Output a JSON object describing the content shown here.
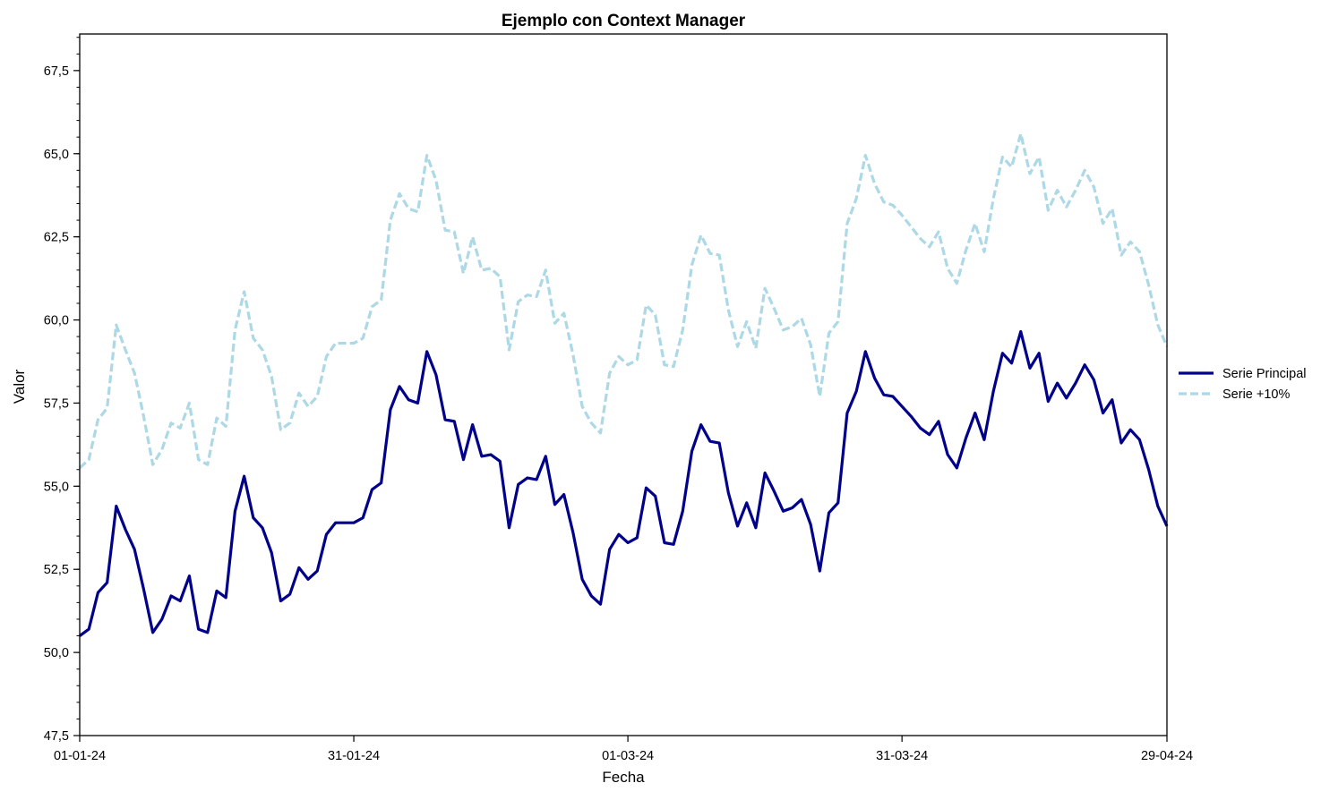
{
  "chart_data": {
    "type": "line",
    "title": "Ejemplo con Context Manager",
    "xlabel": "Fecha",
    "ylabel": "Valor",
    "x_start": "2024-01-01",
    "x_end": "2024-04-29",
    "ylim": [
      47.5,
      68.6
    ],
    "xticks": [
      {
        "date": "2024-01-01",
        "label": "01-01-24"
      },
      {
        "date": "2024-01-31",
        "label": "31-01-24"
      },
      {
        "date": "2024-03-01",
        "label": "01-03-24"
      },
      {
        "date": "2024-03-31",
        "label": "31-03-24"
      },
      {
        "date": "2024-04-29",
        "label": "29-04-24"
      }
    ],
    "yticks": [
      {
        "value": 47.5,
        "label": "47,5"
      },
      {
        "value": 50.0,
        "label": "50,0"
      },
      {
        "value": 52.5,
        "label": "52,5"
      },
      {
        "value": 55.0,
        "label": "55,0"
      },
      {
        "value": 57.5,
        "label": "57,5"
      },
      {
        "value": 60.0,
        "label": "60,0"
      },
      {
        "value": 62.5,
        "label": "62,5"
      },
      {
        "value": 65.0,
        "label": "65,0"
      },
      {
        "value": 67.5,
        "label": "67,5"
      }
    ],
    "y_minor_step": 0.5,
    "grid": false,
    "legend": "right",
    "series": [
      {
        "name": "Serie Principal",
        "color": "#00008b",
        "dash": "solid",
        "values": [
          50.5,
          50.7,
          51.8,
          52.1,
          54.4,
          53.7,
          53.1,
          51.9,
          50.6,
          51.0,
          51.7,
          51.55,
          52.3,
          50.7,
          50.6,
          51.85,
          51.65,
          54.25,
          55.3,
          54.05,
          53.75,
          53.0,
          51.55,
          51.75,
          52.55,
          52.2,
          52.45,
          53.55,
          53.9,
          53.9,
          53.9,
          54.05,
          54.9,
          55.1,
          57.3,
          58.0,
          57.6,
          57.5,
          59.05,
          58.35,
          57.0,
          56.95,
          55.8,
          56.85,
          55.9,
          55.95,
          55.75,
          53.75,
          55.05,
          55.25,
          55.2,
          55.9,
          54.45,
          54.75,
          53.6,
          52.2,
          51.7,
          51.45,
          53.1,
          53.55,
          53.3,
          53.45,
          54.95,
          54.7,
          53.3,
          53.25,
          54.25,
          56.05,
          56.85,
          56.35,
          56.3,
          54.8,
          53.8,
          54.5,
          53.75,
          55.4,
          54.85,
          54.25,
          54.35,
          54.6,
          53.85,
          52.45,
          54.2,
          54.5,
          57.2,
          57.85,
          59.05,
          58.25,
          57.75,
          57.7,
          57.4,
          57.1,
          56.75,
          56.55,
          56.95,
          55.95,
          55.55,
          56.45,
          57.2,
          56.4,
          57.85,
          59.0,
          58.7,
          59.65,
          58.55,
          59.0,
          57.55,
          58.1,
          57.65,
          58.1,
          58.65,
          58.2,
          57.2,
          57.6,
          56.3,
          56.7,
          56.4,
          55.5,
          54.4,
          53.8
        ]
      },
      {
        "name": "Serie +10%",
        "color": "#add8e6",
        "dash": "dashed",
        "values": [
          55.55,
          55.8,
          57.0,
          57.35,
          59.85,
          59.1,
          58.4,
          57.1,
          55.65,
          56.1,
          56.9,
          56.75,
          57.5,
          55.8,
          55.65,
          57.05,
          56.8,
          59.7,
          60.85,
          59.45,
          59.1,
          58.3,
          56.7,
          56.9,
          57.8,
          57.4,
          57.7,
          58.9,
          59.3,
          59.3,
          59.3,
          59.45,
          60.4,
          60.6,
          63.0,
          63.8,
          63.35,
          63.25,
          64.95,
          64.2,
          62.7,
          62.65,
          61.4,
          62.5,
          61.5,
          61.55,
          61.3,
          59.1,
          60.55,
          60.75,
          60.7,
          61.5,
          59.9,
          60.2,
          58.95,
          57.4,
          56.9,
          56.6,
          58.4,
          58.9,
          58.65,
          58.8,
          60.45,
          60.15,
          58.65,
          58.6,
          59.7,
          61.65,
          62.55,
          62.0,
          61.95,
          60.3,
          59.2,
          59.95,
          59.15,
          60.95,
          60.35,
          59.7,
          59.8,
          60.05,
          59.25,
          57.7,
          59.6,
          59.95,
          62.9,
          63.65,
          64.95,
          64.1,
          63.55,
          63.45,
          63.15,
          62.8,
          62.45,
          62.2,
          62.65,
          61.55,
          61.1,
          62.1,
          62.9,
          62.05,
          63.65,
          64.9,
          64.6,
          65.6,
          64.4,
          64.9,
          63.3,
          63.9,
          63.4,
          63.9,
          64.5,
          64.0,
          62.9,
          63.35,
          61.95,
          62.35,
          62.05,
          61.05,
          59.85,
          59.2
        ]
      }
    ]
  }
}
